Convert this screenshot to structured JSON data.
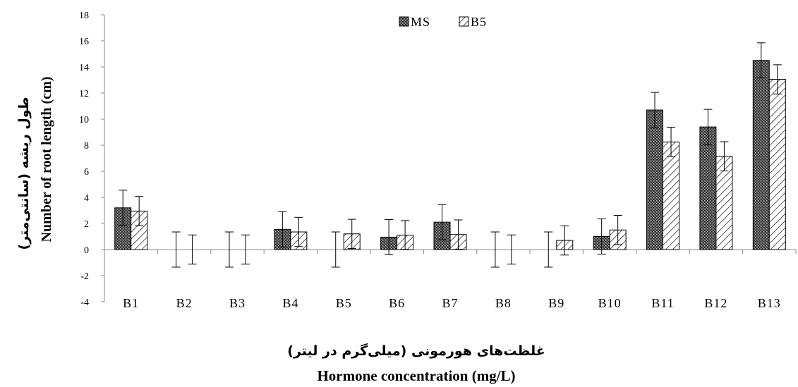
{
  "chart_data": {
    "type": "bar",
    "categories": [
      "B1",
      "B2",
      "B3",
      "B4",
      "B5",
      "B6",
      "B7",
      "B8",
      "B9",
      "B10",
      "B11",
      "B12",
      "B13"
    ],
    "series": [
      {
        "name": "MS",
        "values": [
          3.2,
          0,
          0,
          1.55,
          0,
          0.95,
          2.1,
          0,
          0,
          1.0,
          10.7,
          9.4,
          14.5
        ],
        "errors": [
          1.35,
          1.35,
          1.35,
          1.35,
          1.35,
          1.35,
          1.35,
          1.35,
          1.35,
          1.35,
          1.35,
          1.35,
          1.35
        ]
      },
      {
        "name": "B5",
        "values": [
          2.95,
          0,
          0,
          1.35,
          1.2,
          1.1,
          1.15,
          0,
          0.7,
          1.5,
          8.25,
          7.15,
          13.05
        ],
        "errors": [
          1.12,
          1.12,
          1.12,
          1.12,
          1.12,
          1.12,
          1.12,
          1.12,
          1.12,
          1.12,
          1.12,
          1.12,
          1.12
        ]
      }
    ],
    "ylim": [
      -4,
      18
    ],
    "yticks": [
      -4,
      -2,
      0,
      2,
      4,
      6,
      8,
      10,
      12,
      14,
      16,
      18
    ],
    "ylabel_fa": "طول ریشه (سانتی‌متر)",
    "ylabel_en": "Number of root length (cm)",
    "xlabel_fa": "غلظت‌های هورمونی (میلی‌گرم در لیتر)",
    "xlabel_en": "Hormone concentration (mg/L)",
    "legend_position": "top-center",
    "grid": false
  }
}
